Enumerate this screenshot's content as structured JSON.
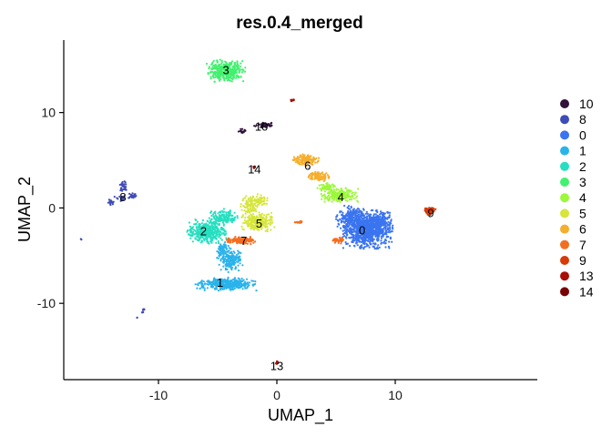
{
  "chart_data": {
    "type": "scatter",
    "title": "res.0.4_merged",
    "xlabel": "UMAP_1",
    "ylabel": "UMAP_2",
    "xlim": [
      -18,
      22
    ],
    "ylim": [
      -18,
      17.6
    ],
    "xticks": [
      -10,
      0,
      10
    ],
    "yticks": [
      -10,
      0,
      10
    ],
    "grid": false,
    "legend_position": "right",
    "series": [
      {
        "name": "10",
        "color": "#30123B",
        "clusters": [
          {
            "label_xy": [
              -1.3,
              8.6
            ],
            "blobs": [
              [
                -1.0,
                8.7,
                0.8,
                0.3,
                40
              ],
              [
                -2.9,
                8.1,
                0.3,
                0.2,
                15
              ]
            ]
          }
        ]
      },
      {
        "name": "8",
        "color": "#3E4CB7",
        "clusters": [
          {
            "label_xy": [
              -13.0,
              1.2
            ],
            "blobs": [
              [
                -13.0,
                2.2,
                0.3,
                0.6,
                30
              ],
              [
                -14.0,
                0.5,
                0.25,
                0.3,
                15
              ],
              [
                -12.2,
                1.3,
                0.3,
                0.3,
                20
              ],
              [
                -13.2,
                1.0,
                0.4,
                0.3,
                20
              ],
              [
                -11.3,
                -10.7,
                0.15,
                0.4,
                8
              ],
              [
                -11.8,
                -11.5,
                0.05,
                0.05,
                2
              ],
              [
                -16.5,
                -3.3,
                0.1,
                0.1,
                2
              ]
            ]
          }
        ]
      },
      {
        "name": "0",
        "color": "#3A74F0",
        "clusters": [
          {
            "label_xy": [
              7.2,
              -2.3
            ],
            "blobs": [
              [
                7.6,
                -2.3,
                1.7,
                1.6,
                900
              ],
              [
                6.3,
                -1.0,
                1.0,
                1.0,
                200
              ],
              [
                8.5,
                -1.5,
                1.0,
                1.0,
                150
              ]
            ]
          }
        ]
      },
      {
        "name": "1",
        "color": "#2AB3EB",
        "clusters": [
          {
            "label_xy": [
              -4.8,
              -7.8
            ],
            "blobs": [
              [
                -4.3,
                -8.0,
                2.0,
                0.55,
                400
              ],
              [
                -3.8,
                -5.5,
                0.9,
                1.0,
                150
              ],
              [
                -4.5,
                -4.5,
                0.5,
                0.8,
                80
              ]
            ]
          }
        ]
      },
      {
        "name": "2",
        "color": "#26DFC0",
        "clusters": [
          {
            "label_xy": [
              -6.2,
              -2.4
            ],
            "blobs": [
              [
                -5.9,
                -2.5,
                1.3,
                1.0,
                400
              ],
              [
                -4.5,
                -1.0,
                1.0,
                0.7,
                150
              ]
            ]
          }
        ]
      },
      {
        "name": "3",
        "color": "#42F16F",
        "clusters": [
          {
            "label_xy": [
              -4.3,
              14.5
            ],
            "blobs": [
              [
                -4.3,
                14.4,
                1.3,
                0.9,
                400
              ]
            ]
          }
        ]
      },
      {
        "name": "4",
        "color": "#9CF83A",
        "clusters": [
          {
            "label_xy": [
              5.4,
              1.2
            ],
            "blobs": [
              [
                5.3,
                1.3,
                1.2,
                0.6,
                200
              ],
              [
                4.2,
                2.1,
                0.6,
                0.4,
                60
              ]
            ]
          }
        ]
      },
      {
        "name": "5",
        "color": "#D6E63A",
        "clusters": [
          {
            "label_xy": [
              -1.5,
              -1.6
            ],
            "blobs": [
              [
                -1.6,
                -1.5,
                1.1,
                0.8,
                250
              ],
              [
                -2.3,
                0.3,
                0.6,
                0.8,
                100
              ],
              [
                -1.3,
                0.8,
                0.5,
                0.5,
                50
              ]
            ]
          }
        ]
      },
      {
        "name": "6",
        "color": "#F5AE2E",
        "clusters": [
          {
            "label_xy": [
              2.6,
              4.5
            ],
            "blobs": [
              [
                2.4,
                5.0,
                0.9,
                0.5,
                150
              ],
              [
                3.5,
                3.3,
                0.8,
                0.4,
                100
              ]
            ]
          }
        ]
      },
      {
        "name": "7",
        "color": "#F46E20",
        "clusters": [
          {
            "label_xy": [
              -2.8,
              -3.4
            ],
            "blobs": [
              [
                -3.0,
                -3.4,
                1.0,
                0.3,
                150
              ],
              [
                5.2,
                -3.4,
                0.5,
                0.25,
                40
              ],
              [
                1.8,
                -1.5,
                0.5,
                0.1,
                15
              ]
            ]
          }
        ]
      },
      {
        "name": "9",
        "color": "#D73B07",
        "clusters": [
          {
            "label_xy": [
              13.0,
              -0.5
            ],
            "blobs": [
              [
                12.9,
                -0.3,
                0.4,
                0.35,
                60
              ]
            ]
          }
        ]
      },
      {
        "name": "13",
        "color": "#A90F04",
        "clusters": [
          {
            "label_xy": [
              0.0,
              -16.5
            ],
            "blobs": [
              [
                0.0,
                -16.3,
                0.1,
                0.2,
                8
              ],
              [
                1.3,
                11.3,
                0.15,
                0.12,
                10
              ]
            ]
          }
        ]
      },
      {
        "name": "14",
        "color": "#7A0403",
        "clusters": [
          {
            "label_xy": [
              -1.9,
              4.1
            ],
            "blobs": [
              [
                -1.9,
                4.3,
                0.12,
                0.12,
                8
              ]
            ]
          }
        ]
      }
    ]
  }
}
